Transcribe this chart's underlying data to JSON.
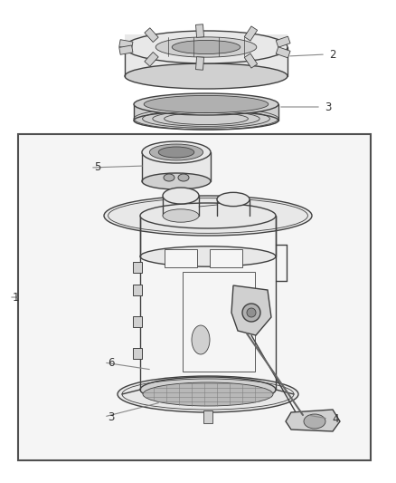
{
  "bg_color": "#ffffff",
  "line_color": "#404040",
  "label_color": "#333333",
  "fig_width": 4.38,
  "fig_height": 5.33,
  "dpi": 100,
  "lw_main": 1.0,
  "lw_thin": 0.6,
  "lw_thick": 1.4,
  "gray_light": "#e8e8e8",
  "gray_mid": "#d0d0d0",
  "gray_dark": "#b0b0b0",
  "gray_body": "#c8c8c8",
  "white_fill": "#f5f5f5",
  "label_fontsize": 8.5,
  "callout_color": "#888888"
}
